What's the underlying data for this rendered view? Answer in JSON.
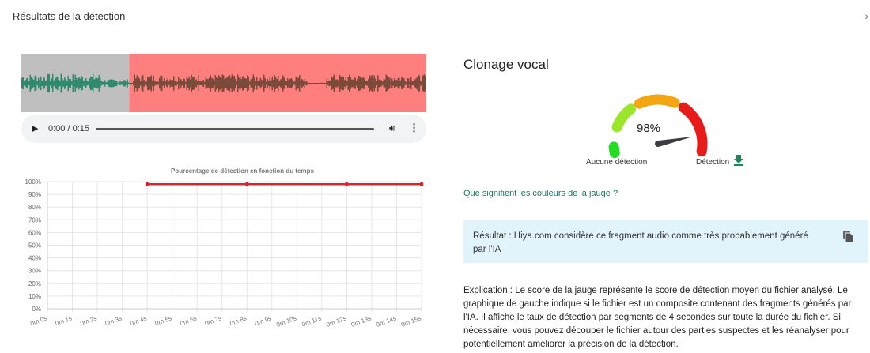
{
  "header": {
    "title": "Résultats de la détection",
    "close_icon": "chevron-right-icon"
  },
  "player": {
    "time": "0:00 / 0:15",
    "play_icon": "play-icon",
    "volume_icon": "volume-icon",
    "more_icon": "more-vert-icon"
  },
  "waveform": {
    "duration_s": 15,
    "flagged_from_s": 4,
    "colors": {
      "clean_bg": "#bfbfbf",
      "clean_wave": "#2e8b6e",
      "flagged_bg": "#ff7f7f",
      "flagged_wave": "#7a4b3a"
    }
  },
  "gauge": {
    "title": "Clonage vocal",
    "value_label": "98%",
    "value": 98,
    "label_low": "Aucune détection",
    "label_high": "Détection",
    "download_icon": "download-icon"
  },
  "link": "Que signifient les couleurs de la jauge ?",
  "result": {
    "text": "Résultat : Hiya.com considère ce fragment audio comme très probablement généré par l'IA",
    "copy_icon": "copy-icon"
  },
  "explanation": "Explication : Le score de la jauge représente le score de détection moyen du fichier analysé. Le graphique de gauche indique si le fichier est un composite contenant des fragments générés par l'IA. Il affiche le taux de détection par segments de 4 secondes sur toute la durée du fichier. Si nécessaire, vous pouvez découper le fichier autour des parties suspectes et les réanalyser pour potentiellement améliorer la précision de la détection.",
  "chart_data": {
    "type": "line",
    "title": "Pourcentage de détection en fonction du temps",
    "x_ticks": [
      "0m 0s",
      "0m 1s",
      "0m 2s",
      "0m 3s",
      "0m 4s",
      "0m 5s",
      "0m 6s",
      "0m 7s",
      "0m 8s",
      "0m 9s",
      "0m 10s",
      "0m 11s",
      "0m 12s",
      "0m 13s",
      "0m 14s",
      "0m 15s"
    ],
    "y_ticks": [
      "0%",
      "10%",
      "20%",
      "30%",
      "40%",
      "50%",
      "60%",
      "70%",
      "80%",
      "90%",
      "100%"
    ],
    "xlim": [
      0,
      15
    ],
    "ylim": [
      0,
      100
    ],
    "grid": true,
    "series": [
      {
        "x": [
          4,
          8,
          12,
          15
        ],
        "y": [
          98,
          98,
          98,
          98
        ],
        "color": "#d62728"
      }
    ]
  }
}
